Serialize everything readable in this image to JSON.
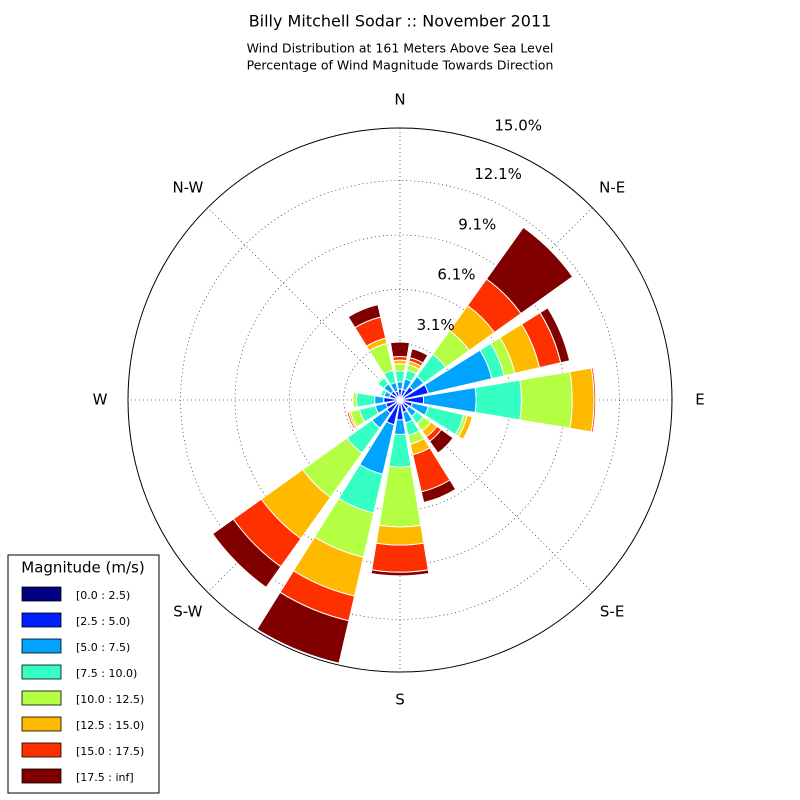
{
  "chart_data": {
    "type": "windrose",
    "title": "Billy Mitchell Sodar :: November 2011",
    "subtitle": "Wind Distribution at 161 Meters Above Sea Level",
    "subtitle2": "Percentage of Wind Magnitude Towards Direction",
    "legend_title": "Magnitude (m/s)",
    "categories": [
      "N",
      null,
      "N-E",
      null,
      "E",
      null,
      "S-E",
      null,
      "S",
      null,
      "S-W",
      null,
      "W",
      null,
      "N-W",
      null
    ],
    "ylim": [
      0,
      15
    ],
    "yticks": [
      {
        "value": 3.1,
        "label": "3.1%"
      },
      {
        "value": 6.1,
        "label": "6.1%"
      },
      {
        "value": 9.1,
        "label": "9.1%"
      },
      {
        "value": 12.1,
        "label": "12.1%"
      },
      {
        "value": 15.0,
        "label": "15.0%"
      }
    ],
    "series": [
      {
        "name": "[0.0 : 2.5)",
        "color": "#000080",
        "values": [
          0.1,
          0.1,
          0.1,
          0.1,
          0.1,
          0.1,
          0.1,
          0.1,
          0.1,
          0.1,
          0.1,
          0.1,
          0.1,
          0.1,
          0.1,
          0.1
        ]
      },
      {
        "name": "[2.5 : 5.0)",
        "color": "#0020ff",
        "values": [
          0.5,
          0.5,
          0.8,
          1.5,
          1.2,
          0.6,
          0.5,
          0.6,
          1.0,
          1.3,
          0.8,
          0.7,
          0.8,
          0.5,
          0.5,
          0.4
        ]
      },
      {
        "name": "[5.0 : 7.5)",
        "color": "#00a4ff",
        "values": [
          0.4,
          0.6,
          0.7,
          3.6,
          2.9,
          0.9,
          0.5,
          0.6,
          0.8,
          2.8,
          1.0,
          0.6,
          0.5,
          0.3,
          0.5,
          0.5
        ]
      },
      {
        "name": "[7.5 : 10.0)",
        "color": "#36ffc3",
        "values": [
          0.6,
          0.5,
          1.5,
          0.7,
          2.5,
          2.0,
          0.5,
          0.7,
          1.8,
          2.2,
          1.7,
          0.9,
          1.0,
          0.2,
          0.4,
          0.7
        ]
      },
      {
        "name": "[10.0 : 12.5)",
        "color": "#b4ff43",
        "values": [
          0.4,
          0.3,
          1.6,
          0.6,
          2.8,
          0.2,
          0.5,
          0.5,
          3.3,
          2.5,
          3.0,
          0.5,
          0.2,
          0,
          0.1,
          1.5
        ]
      },
      {
        "name": "[12.5 : 15.0)",
        "color": "#ffb900",
        "values": [
          0.2,
          0.2,
          1.7,
          1.4,
          1.2,
          0.3,
          0.4,
          0.6,
          1.0,
          2.2,
          2.8,
          0.1,
          0,
          0,
          0,
          0.3
        ]
      },
      {
        "name": "[15.0 : 17.5)",
        "color": "#ff3000",
        "values": [
          0.2,
          0.2,
          1.8,
          1.2,
          0.1,
          0,
          0.3,
          2.1,
          1.5,
          1.4,
          1.9,
          0.1,
          0,
          0,
          0,
          1.2
        ]
      },
      {
        "name": "[17.5 : inf]",
        "color": "#800000",
        "values": [
          0.8,
          0.5,
          3.5,
          0.5,
          0,
          0,
          0.8,
          0.6,
          0.2,
          2.4,
          1.4,
          0,
          0,
          0,
          0,
          0.7
        ]
      }
    ]
  }
}
